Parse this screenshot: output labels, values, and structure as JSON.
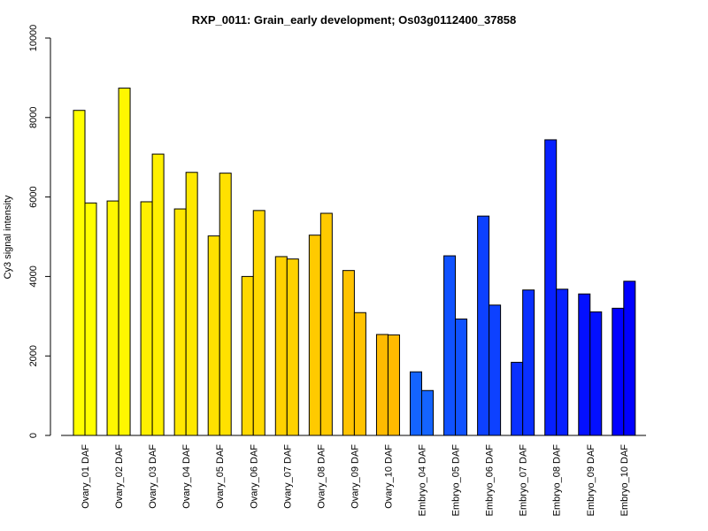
{
  "chart_data": {
    "type": "bar",
    "title": "RXP_0011: Grain_early development; Os03g0112400_37858",
    "xlabel": "",
    "ylabel": "Cy3 signal intensity",
    "ylim": [
      0,
      10000
    ],
    "yticks": [
      0,
      2000,
      4000,
      6000,
      8000,
      10000
    ],
    "grid": false,
    "categories": [
      "Ovary_01 DAF",
      "Ovary_02 DAF",
      "Ovary_03 DAF",
      "Ovary_04 DAF",
      "Ovary_05 DAF",
      "Ovary_06 DAF",
      "Ovary_07 DAF",
      "Ovary_08 DAF",
      "Ovary_09 DAF",
      "Ovary_10 DAF",
      "Embryo_04 DAF",
      "Embryo_05 DAF",
      "Embryo_06 DAF",
      "Embryo_07 DAF",
      "Embryo_08 DAF",
      "Embryo_09 DAF",
      "Embryo_10 DAF"
    ],
    "colors": [
      "#ffff00",
      "#fff700",
      "#fff000",
      "#ffe800",
      "#ffe100",
      "#ffd900",
      "#ffd200",
      "#ffca00",
      "#ffc300",
      "#ffbb00",
      "#1464ff",
      "#1052ff",
      "#0d41ff",
      "#0a30ff",
      "#0720ff",
      "#0410ff",
      "#0000ff"
    ],
    "series": [
      {
        "values": [
          8180,
          5900,
          5880,
          5700,
          5020,
          4000,
          4500,
          5040,
          4150,
          2540,
          1600,
          4520,
          5520,
          1840,
          7440,
          3560,
          3200
        ]
      },
      {
        "values": [
          5850,
          8740,
          7080,
          6620,
          6600,
          5660,
          4440,
          5590,
          3090,
          2530,
          1130,
          2930,
          3280,
          3660,
          3680,
          3110,
          3880
        ]
      }
    ]
  }
}
